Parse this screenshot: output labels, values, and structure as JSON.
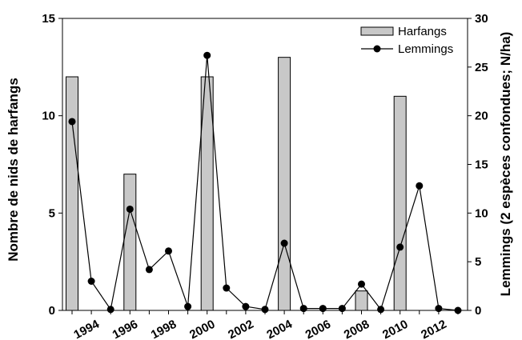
{
  "chart_data": {
    "type": "bar+line",
    "title": "",
    "xlabel": "",
    "ylabel_left": "Nombre de nids de harfangs",
    "ylabel_right": "Lemmings (2 espèces confondues; N/ha)",
    "ylim_left": [
      0,
      15
    ],
    "ylim_right": [
      0,
      30
    ],
    "yticks_left": [
      "0",
      "5",
      "10",
      "15"
    ],
    "yticks_right": [
      "0",
      "5",
      "10",
      "15",
      "20",
      "25",
      "30"
    ],
    "x_range": [
      1993,
      2014
    ],
    "x_tick_labels": [
      "1994",
      "1996",
      "1998",
      "2000",
      "2002",
      "2004",
      "2006",
      "2008",
      "2010",
      "2012"
    ],
    "legend_position": "top-right",
    "bar_color": "#c8c8c8",
    "line_color": "#000000",
    "series": [
      {
        "name": "Harfangs",
        "kind": "bar",
        "axis": "left",
        "x": [
          1993,
          1996,
          2000,
          2004,
          2008,
          2010
        ],
        "values": [
          12,
          7,
          12,
          13,
          1,
          11
        ]
      },
      {
        "name": "Lemmings",
        "kind": "line",
        "axis": "right",
        "x": [
          1993,
          1994,
          1995,
          1996,
          1997,
          1998,
          1999,
          2000,
          2001,
          2002,
          2003,
          2004,
          2005,
          2006,
          2007,
          2008,
          2009,
          2010,
          2011,
          2012,
          2013
        ],
        "values": [
          19.4,
          3.0,
          0.1,
          10.4,
          4.2,
          6.1,
          0.4,
          26.2,
          2.3,
          0.4,
          0.1,
          6.9,
          0.2,
          0.2,
          0.2,
          2.7,
          0.1,
          6.5,
          12.8,
          0.2,
          0.0
        ]
      }
    ]
  }
}
